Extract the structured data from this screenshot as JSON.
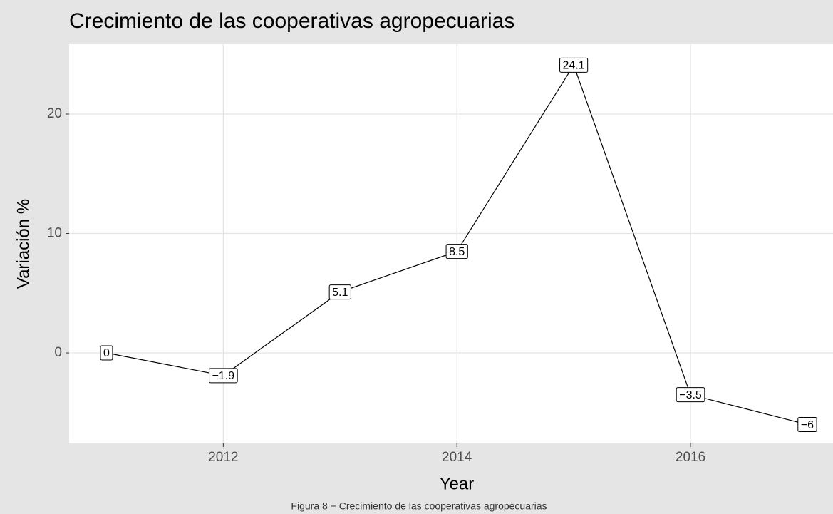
{
  "chart_data": {
    "type": "line",
    "title": "Crecimiento de las cooperativas agropecuarias",
    "x_label": "Year",
    "y_label": "Variación %",
    "caption": "Figura 8 − Crecimiento de las cooperativas agropecuarias",
    "x": [
      2011,
      2012,
      2013,
      2014,
      2015,
      2016,
      2017
    ],
    "values": [
      0,
      -1.9,
      5.1,
      8.5,
      24.1,
      -3.5,
      -6
    ],
    "value_labels": [
      "0",
      "−1.9",
      "5.1",
      "8.5",
      "24.1",
      "−3.5",
      "−6"
    ],
    "color": "#000000",
    "xlim": [
      2010.68,
      2017.22
    ],
    "xticks": [
      2012,
      2014,
      2016
    ],
    "ylim": [
      -7.58,
      25.85
    ],
    "yticks": [
      0,
      10,
      20
    ],
    "grid": true
  }
}
